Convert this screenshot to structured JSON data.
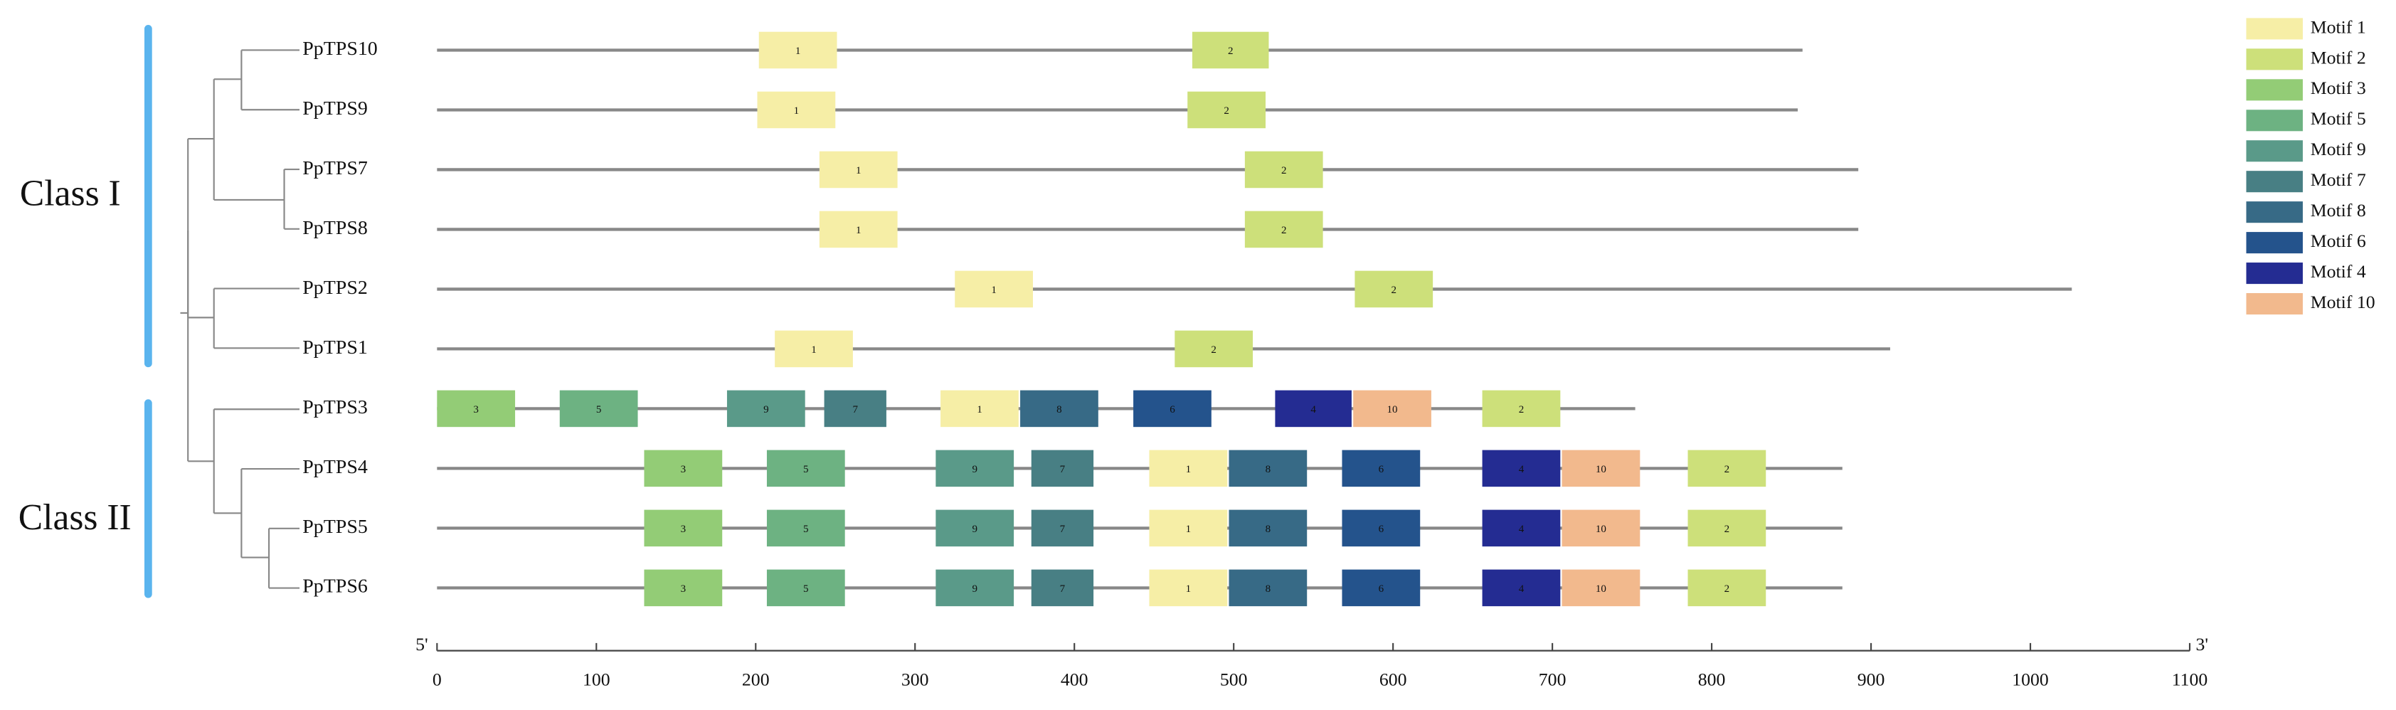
{
  "chart_data": {
    "type": "motif",
    "xlim": [
      0,
      1100
    ],
    "xticks": [
      0,
      100,
      200,
      300,
      400,
      500,
      600,
      700,
      800,
      900,
      1000,
      1100
    ],
    "start_label": "5'",
    "end_label": "3'",
    "classes": [
      "Class I",
      "Class II"
    ],
    "legend": [
      {
        "name": "Motif 1",
        "color": "#f6eea6"
      },
      {
        "name": "Motif 2",
        "color": "#cde07a"
      },
      {
        "name": "Motif 3",
        "color": "#93cc76"
      },
      {
        "name": "Motif 5",
        "color": "#6db282"
      },
      {
        "name": "Motif 9",
        "color": "#5a9a89"
      },
      {
        "name": "Motif 7",
        "color": "#487f84"
      },
      {
        "name": "Motif 8",
        "color": "#376a86"
      },
      {
        "name": "Motif 6",
        "color": "#24538c"
      },
      {
        "name": "Motif 4",
        "color": "#242c92"
      },
      {
        "name": "Motif 10",
        "color": "#f2b98d"
      }
    ],
    "genes": [
      {
        "name": "PpTPS10",
        "length": 857,
        "motifs": [
          {
            "label": "1",
            "color": "#f6eea6",
            "start": 202,
            "end": 251
          },
          {
            "label": "2",
            "color": "#cde07a",
            "start": 474,
            "end": 522
          }
        ]
      },
      {
        "name": "PpTPS9",
        "length": 854,
        "motifs": [
          {
            "label": "1",
            "color": "#f6eea6",
            "start": 201,
            "end": 250
          },
          {
            "label": "2",
            "color": "#cde07a",
            "start": 471,
            "end": 520
          }
        ]
      },
      {
        "name": "PpTPS7",
        "length": 892,
        "motifs": [
          {
            "label": "1",
            "color": "#f6eea6",
            "start": 240,
            "end": 289
          },
          {
            "label": "2",
            "color": "#cde07a",
            "start": 507,
            "end": 556
          }
        ]
      },
      {
        "name": "PpTPS8",
        "length": 892,
        "motifs": [
          {
            "label": "1",
            "color": "#f6eea6",
            "start": 240,
            "end": 289
          },
          {
            "label": "2",
            "color": "#cde07a",
            "start": 507,
            "end": 556
          }
        ]
      },
      {
        "name": "PpTPS2",
        "length": 1026,
        "motifs": [
          {
            "label": "1",
            "color": "#f6eea6",
            "start": 325,
            "end": 374
          },
          {
            "label": "2",
            "color": "#cde07a",
            "start": 576,
            "end": 625
          }
        ]
      },
      {
        "name": "PpTPS1",
        "length": 912,
        "motifs": [
          {
            "label": "1",
            "color": "#f6eea6",
            "start": 212,
            "end": 261
          },
          {
            "label": "2",
            "color": "#cde07a",
            "start": 463,
            "end": 512
          }
        ]
      },
      {
        "name": "PpTPS3",
        "length": 752,
        "motifs": [
          {
            "label": "3",
            "color": "#93cc76",
            "start": 0,
            "end": 49
          },
          {
            "label": "5",
            "color": "#6db282",
            "start": 77,
            "end": 126
          },
          {
            "label": "9",
            "color": "#5a9a89",
            "start": 182,
            "end": 231
          },
          {
            "label": "7",
            "color": "#487f84",
            "start": 243,
            "end": 282
          },
          {
            "label": "1",
            "color": "#f6eea6",
            "start": 316,
            "end": 365
          },
          {
            "label": "8",
            "color": "#376a86",
            "start": 366,
            "end": 415
          },
          {
            "label": "6",
            "color": "#24538c",
            "start": 437,
            "end": 486
          },
          {
            "label": "4",
            "color": "#242c92",
            "start": 526,
            "end": 574
          },
          {
            "label": "10",
            "color": "#f2b98d",
            "start": 575,
            "end": 624
          },
          {
            "label": "2",
            "color": "#cde07a",
            "start": 656,
            "end": 705
          }
        ]
      },
      {
        "name": "PpTPS4",
        "length": 882,
        "motifs": [
          {
            "label": "3",
            "color": "#93cc76",
            "start": 130,
            "end": 179
          },
          {
            "label": "5",
            "color": "#6db282",
            "start": 207,
            "end": 256
          },
          {
            "label": "9",
            "color": "#5a9a89",
            "start": 313,
            "end": 362
          },
          {
            "label": "7",
            "color": "#487f84",
            "start": 373,
            "end": 412
          },
          {
            "label": "1",
            "color": "#f6eea6",
            "start": 447,
            "end": 496
          },
          {
            "label": "8",
            "color": "#376a86",
            "start": 497,
            "end": 546
          },
          {
            "label": "6",
            "color": "#24538c",
            "start": 568,
            "end": 617
          },
          {
            "label": "4",
            "color": "#242c92",
            "start": 656,
            "end": 705
          },
          {
            "label": "10",
            "color": "#f2b98d",
            "start": 706,
            "end": 755
          },
          {
            "label": "2",
            "color": "#cde07a",
            "start": 785,
            "end": 834
          }
        ]
      },
      {
        "name": "PpTPS5",
        "length": 882,
        "motifs": [
          {
            "label": "3",
            "color": "#93cc76",
            "start": 130,
            "end": 179
          },
          {
            "label": "5",
            "color": "#6db282",
            "start": 207,
            "end": 256
          },
          {
            "label": "9",
            "color": "#5a9a89",
            "start": 313,
            "end": 362
          },
          {
            "label": "7",
            "color": "#487f84",
            "start": 373,
            "end": 412
          },
          {
            "label": "1",
            "color": "#f6eea6",
            "start": 447,
            "end": 496
          },
          {
            "label": "8",
            "color": "#376a86",
            "start": 497,
            "end": 546
          },
          {
            "label": "6",
            "color": "#24538c",
            "start": 568,
            "end": 617
          },
          {
            "label": "4",
            "color": "#242c92",
            "start": 656,
            "end": 705
          },
          {
            "label": "10",
            "color": "#f2b98d",
            "start": 706,
            "end": 755
          },
          {
            "label": "2",
            "color": "#cde07a",
            "start": 785,
            "end": 834
          }
        ]
      },
      {
        "name": "PpTPS6",
        "length": 882,
        "motifs": [
          {
            "label": "3",
            "color": "#93cc76",
            "start": 130,
            "end": 179
          },
          {
            "label": "5",
            "color": "#6db282",
            "start": 207,
            "end": 256
          },
          {
            "label": "9",
            "color": "#5a9a89",
            "start": 313,
            "end": 362
          },
          {
            "label": "7",
            "color": "#487f84",
            "start": 373,
            "end": 412
          },
          {
            "label": "1",
            "color": "#f6eea6",
            "start": 447,
            "end": 496
          },
          {
            "label": "8",
            "color": "#376a86",
            "start": 497,
            "end": 546
          },
          {
            "label": "6",
            "color": "#24538c",
            "start": 568,
            "end": 617
          },
          {
            "label": "4",
            "color": "#242c92",
            "start": 656,
            "end": 705
          },
          {
            "label": "10",
            "color": "#f2b98d",
            "start": 706,
            "end": 755
          },
          {
            "label": "2",
            "color": "#cde07a",
            "start": 785,
            "end": 834
          }
        ]
      }
    ]
  }
}
